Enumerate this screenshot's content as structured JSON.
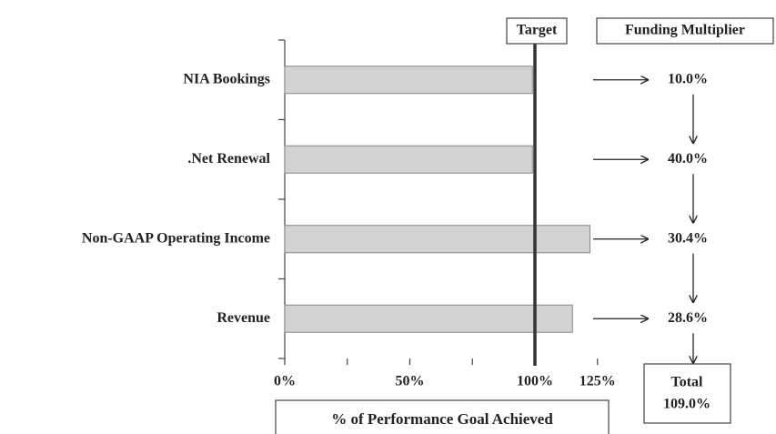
{
  "chart_data": {
    "type": "bar",
    "orientation": "horizontal",
    "categories": [
      "NIA Bookings",
      ".Net Renewal",
      "Non-GAAP Operating Income",
      "Revenue"
    ],
    "values": [
      99,
      99,
      122,
      115
    ],
    "color": "#d3d3d3",
    "xlim": [
      0,
      125
    ],
    "xticks": [
      {
        "value": 0,
        "label": "0%"
      },
      {
        "value": 50,
        "label": "50%"
      },
      {
        "value": 100,
        "label": "100%"
      },
      {
        "value": 125,
        "label": "125%"
      }
    ],
    "xticks_minor": [
      25,
      75
    ],
    "x_label": "% of Performance Goal Achieved",
    "target": {
      "label": "Target",
      "value": 100
    },
    "funding_multiplier": {
      "title": "Funding Multiplier",
      "values": [
        10.0,
        40.0,
        30.4,
        28.6
      ],
      "value_labels": [
        "10.0%",
        "40.0%",
        "30.4%",
        "28.6%"
      ],
      "total_label": "Total",
      "total": 109.0,
      "total_value_label": "109.0%"
    }
  }
}
